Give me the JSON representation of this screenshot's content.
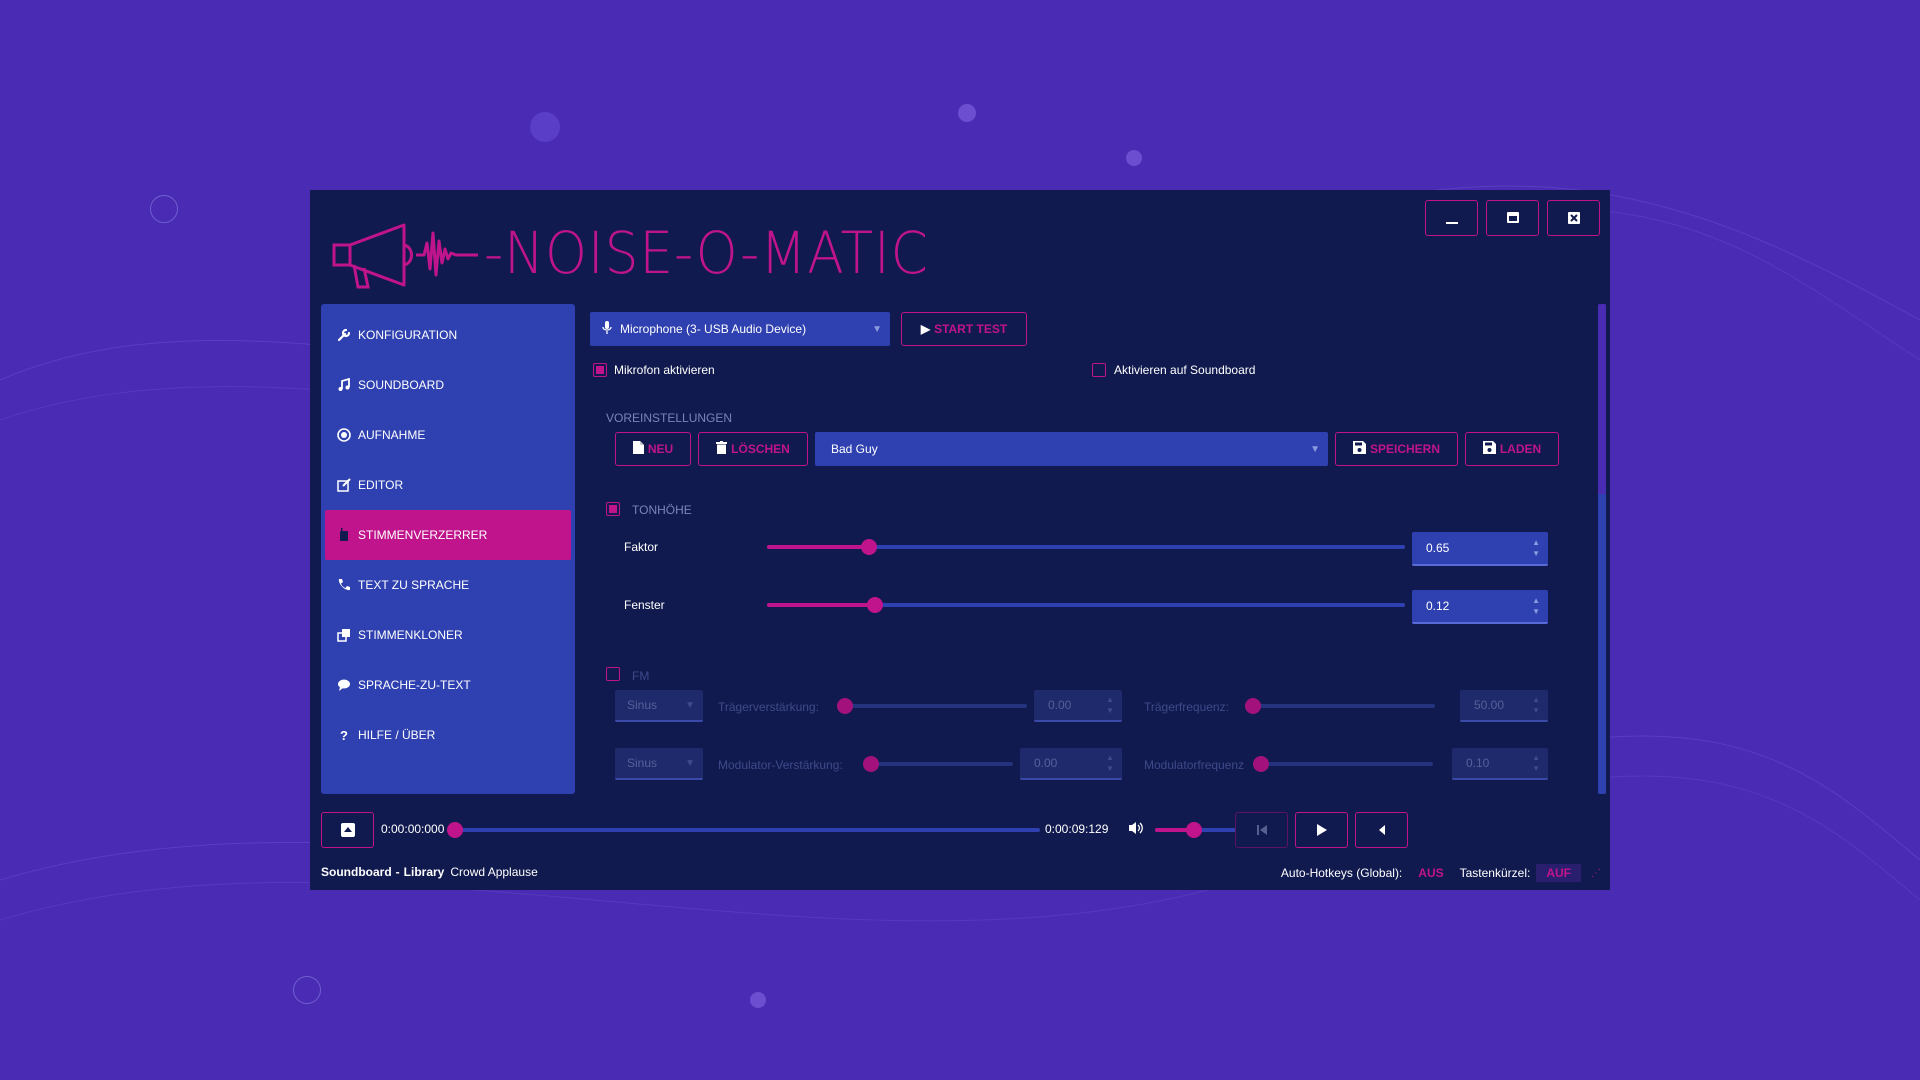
{
  "app": {
    "title": "-NOISE-O-MATIC",
    "colors": {
      "accent": "#c0148c",
      "panel": "#2f41b0",
      "window": "#111a4e",
      "background": "#4a2bb3"
    }
  },
  "window_controls": {
    "minimize_icon": "minimize-icon",
    "maximize_icon": "maximize-icon",
    "close_icon": "close-icon"
  },
  "sidebar": {
    "items": [
      {
        "label": "KONFIGURATION",
        "icon": "wrench-icon"
      },
      {
        "label": "SOUNDBOARD",
        "icon": "music-note-icon"
      },
      {
        "label": "AUFNAHME",
        "icon": "record-icon"
      },
      {
        "label": "EDITOR",
        "icon": "edit-icon"
      },
      {
        "label": "STIMMENVERZERRER",
        "icon": "walkie-talkie-icon",
        "active": true
      },
      {
        "label": "TEXT ZU SPRACHE",
        "icon": "phone-icon"
      },
      {
        "label": "STIMMENKLONER",
        "icon": "clone-icon"
      },
      {
        "label": "SPRACHE-ZU-TEXT",
        "icon": "speech-bubble-icon"
      },
      {
        "label": "HILFE / ÜBER",
        "icon": "question-icon"
      }
    ]
  },
  "main": {
    "device_select": "Microphone (3- USB Audio Device)",
    "start_test_label": "START TEST",
    "mic_enable_label": "Mikrofon aktivieren",
    "mic_enable_checked": true,
    "soundboard_enable_label": "Aktivieren auf Soundboard",
    "soundboard_enable_checked": false,
    "presets": {
      "heading": "VOREINSTELLUNGEN",
      "new_label": "NEU",
      "delete_label": "LÖSCHEN",
      "selected": "Bad Guy",
      "save_label": "SPEICHERN",
      "load_label": "LADEN"
    },
    "pitch": {
      "heading": "TONHÖHE",
      "checked": true,
      "factor_label": "Faktor",
      "factor_value": "0.65",
      "factor_level": 0.16,
      "window_label": "Fenster",
      "window_value": "0.12",
      "window_level": 0.17
    },
    "fm": {
      "heading": "FM",
      "checked": false,
      "row1": {
        "wave": "Sinus",
        "gain_label": "Trägerverstärkung:",
        "gain_value": "0.00",
        "gain_level": 0.0,
        "freq_label": "Trägerfrequenz:",
        "freq_value": "50.00",
        "freq_level": 0.0
      },
      "row2": {
        "wave": "Sinus",
        "gain_label": "Modulator-Verstärkung:",
        "gain_value": "0.00",
        "gain_level": 0.0,
        "freq_label": "Modulatorfrequenz",
        "freq_value": "0.10",
        "freq_level": 0.0
      }
    }
  },
  "player": {
    "time_current": "0:00:00:000",
    "time_total": "0:00:09:129",
    "progress": 0.0,
    "volume_level": 0.45
  },
  "status": {
    "soundboard": "Soundboard",
    "separator": "-",
    "library": "Library",
    "track": "Crowd Applause",
    "hotkeys_label": "Auto-Hotkeys (Global):",
    "hotkeys_value": "AUS",
    "shortcuts_label": "Tastenkürzel:",
    "shortcuts_value": "AUF"
  }
}
